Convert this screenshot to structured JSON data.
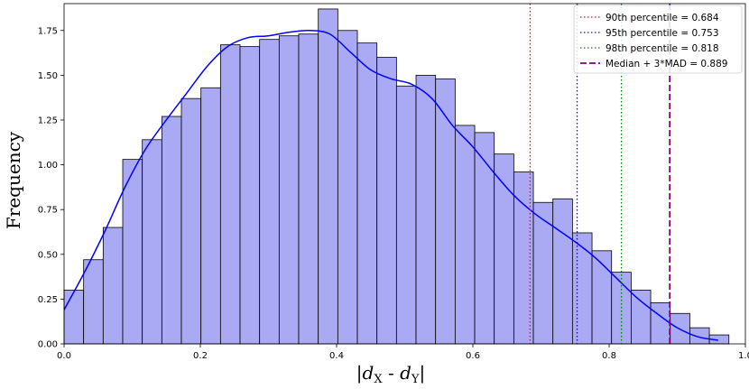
{
  "chart_data": {
    "type": "bar",
    "subtype": "histogram with KDE",
    "title": "",
    "xlabel": "|d_X - d_Y|",
    "xlabel_parts": {
      "bar": "|",
      "d1": "d",
      "sub1": "X",
      "dash": " - ",
      "d2": "d",
      "sub2": "Y"
    },
    "ylabel": "Frequency",
    "xlim": [
      0.0,
      1.0
    ],
    "ylim": [
      0.0,
      1.9
    ],
    "x_ticks": [
      "0.0",
      "0.2",
      "0.4",
      "0.6",
      "0.8",
      "1.0"
    ],
    "y_ticks": [
      "0.00",
      "0.25",
      "0.50",
      "0.75",
      "1.00",
      "1.25",
      "1.50",
      "1.75"
    ],
    "grid": false,
    "legend_position": "top-right",
    "bin_width": 0.0287,
    "bins_start": [
      0.0,
      0.0287,
      0.0574,
      0.0861,
      0.1148,
      0.1435,
      0.1722,
      0.2009,
      0.2296,
      0.2583,
      0.287,
      0.3157,
      0.3444,
      0.3731,
      0.4018,
      0.4305,
      0.4592,
      0.4879,
      0.5166,
      0.5453,
      0.574,
      0.6027,
      0.6314,
      0.6601,
      0.6888,
      0.7175,
      0.7462,
      0.7749,
      0.8036,
      0.8323,
      0.861,
      0.8897,
      0.9184,
      0.9471
    ],
    "values": [
      0.3,
      0.47,
      0.65,
      1.03,
      1.14,
      1.27,
      1.37,
      1.43,
      1.67,
      1.66,
      1.7,
      1.72,
      1.73,
      1.87,
      1.75,
      1.68,
      1.6,
      1.44,
      1.5,
      1.48,
      1.22,
      1.18,
      1.06,
      0.96,
      0.79,
      0.81,
      0.62,
      0.52,
      0.4,
      0.3,
      0.23,
      0.17,
      0.09,
      0.05
    ],
    "kde": {
      "x": [
        0.0,
        0.03,
        0.06,
        0.09,
        0.12,
        0.15,
        0.18,
        0.21,
        0.24,
        0.27,
        0.3,
        0.33,
        0.36,
        0.39,
        0.42,
        0.45,
        0.48,
        0.51,
        0.54,
        0.57,
        0.6,
        0.63,
        0.66,
        0.69,
        0.72,
        0.75,
        0.78,
        0.81,
        0.84,
        0.87,
        0.9,
        0.93,
        0.96
      ],
      "y": [
        0.19,
        0.4,
        0.63,
        0.88,
        1.09,
        1.25,
        1.4,
        1.55,
        1.66,
        1.71,
        1.72,
        1.74,
        1.75,
        1.73,
        1.63,
        1.53,
        1.48,
        1.45,
        1.37,
        1.22,
        1.1,
        0.96,
        0.83,
        0.73,
        0.65,
        0.57,
        0.48,
        0.37,
        0.26,
        0.17,
        0.09,
        0.04,
        0.02
      ]
    },
    "series": [
      {
        "name": "90th percentile = 0.684",
        "x": 0.684,
        "style": "dotted",
        "color": "#ff0000"
      },
      {
        "name": "95th percentile = 0.753",
        "x": 0.753,
        "style": "dotted",
        "color": "#0000ff"
      },
      {
        "name": "98th percentile = 0.818",
        "x": 0.818,
        "style": "dotted",
        "color": "#008000"
      },
      {
        "name": "Median + 3*MAD = 0.889",
        "x": 0.889,
        "style": "dashed",
        "color": "#800080"
      }
    ],
    "colors": {
      "bar_fill": "#aaaaf4",
      "bar_edge": "#000000",
      "kde_line": "#0000ff"
    }
  }
}
